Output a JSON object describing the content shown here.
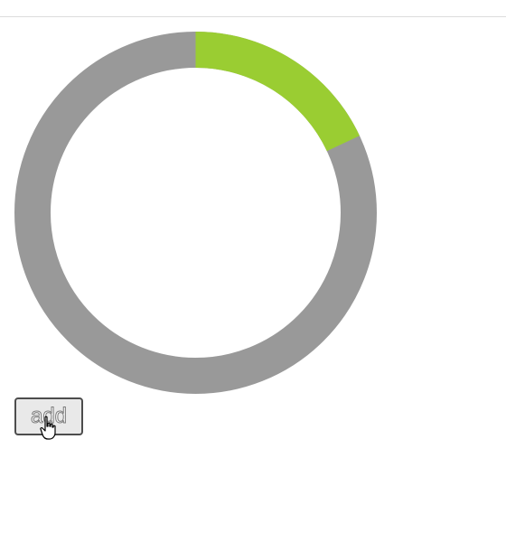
{
  "progress_ring": {
    "progress_fraction": 0.18,
    "progress_color": "#9acd32",
    "track_color": "#999999"
  },
  "buttons": {
    "add_label": "add"
  },
  "cursor": {
    "icon": "hand-pointer-icon"
  }
}
